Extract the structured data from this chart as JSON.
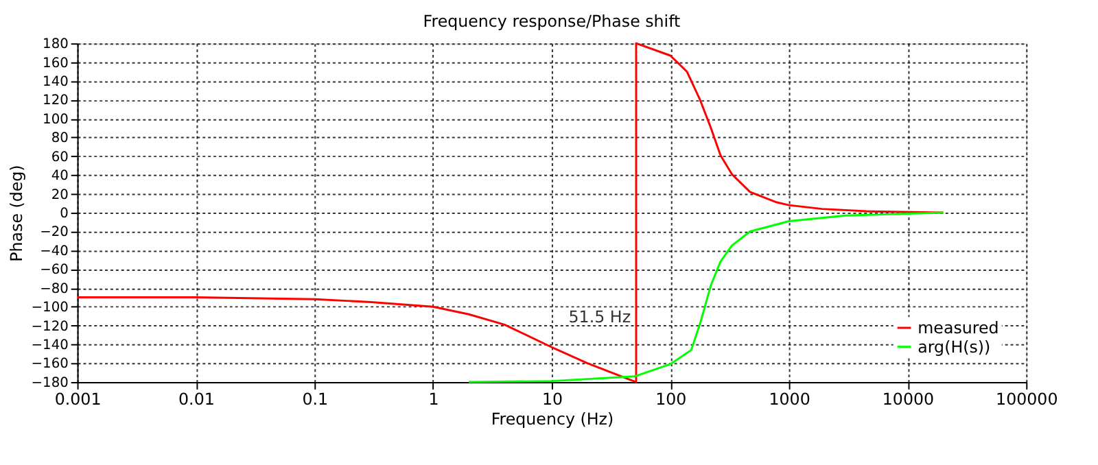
{
  "chart_data": {
    "type": "line",
    "title": "Frequency response/Phase shift",
    "xlabel": "Frequency (Hz)",
    "ylabel": "Phase (deg)",
    "log": "x",
    "xlim": [
      0.001,
      100000
    ],
    "xticks": [
      0.001,
      0.01,
      0.1,
      1,
      10,
      100,
      1000,
      10000,
      100000
    ],
    "ylim": [
      -180,
      180
    ],
    "yticks": [
      -180,
      -160,
      -140,
      -120,
      -100,
      -80,
      -60,
      -40,
      -20,
      0,
      20,
      40,
      60,
      80,
      100,
      120,
      140,
      160,
      180
    ],
    "grid": true,
    "legend": "bottom right",
    "marker": "none",
    "line_style": "solid",
    "annotations": [
      {
        "text": "51.5 Hz",
        "x": 51.5,
        "y": -111
      }
    ],
    "series": [
      {
        "name": "measured",
        "color": "#ff0000",
        "x": [
          0.001,
          0.01,
          0.1,
          0.3,
          1,
          2,
          4,
          10,
          20,
          51.5,
          51.5,
          100,
          138,
          178,
          220,
          265,
          330,
          470,
          790,
          1000,
          1900,
          4500,
          20000
        ],
        "values": [
          -90,
          -90,
          -92,
          -95,
          -100,
          -108,
          -119,
          -143,
          -160,
          -180,
          180,
          167,
          150,
          120,
          90,
          61,
          41,
          22,
          11,
          8,
          4,
          1.5,
          0
        ]
      },
      {
        "name": "arg(H(s))",
        "color": "#00ff00",
        "x": [
          2,
          10,
          50,
          100,
          150,
          180,
          220,
          265,
          330,
          470,
          1000,
          3000,
          20000
        ],
        "values": [
          -180,
          -179,
          -174,
          -161,
          -146,
          -116,
          -77,
          -52,
          -35,
          -20,
          -9,
          -3,
          0
        ]
      }
    ]
  }
}
